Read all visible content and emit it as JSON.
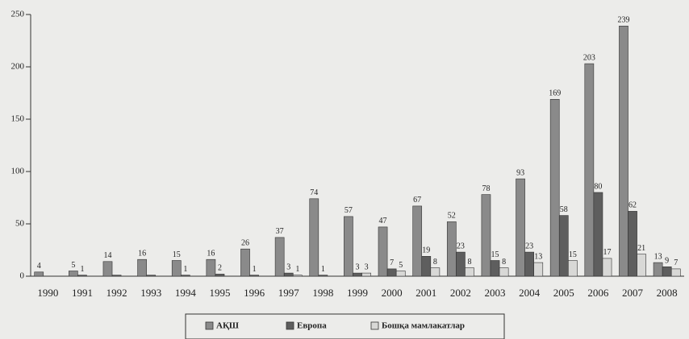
{
  "chart_data": {
    "type": "bar",
    "categories": [
      "1990",
      "1991",
      "1992",
      "1993",
      "1994",
      "1995",
      "1996",
      "1997",
      "1998",
      "1999",
      "2000",
      "2001",
      "2002",
      "2003",
      "2004",
      "2005",
      "2006",
      "2007",
      "2008"
    ],
    "series": [
      {
        "name": "АҚШ",
        "color": "#8a8a8a",
        "values": [
          4,
          5,
          14,
          16,
          15,
          16,
          26,
          37,
          74,
          57,
          47,
          67,
          52,
          78,
          93,
          169,
          203,
          239,
          13
        ],
        "value_labels": [
          "4",
          "5",
          "14",
          "16",
          "15",
          "16",
          "26",
          "37",
          "74",
          "57",
          "47",
          "67",
          "52",
          "78",
          "93",
          "169",
          "203",
          "239",
          "13"
        ]
      },
      {
        "name": "Европа",
        "color": "#5e5e5e",
        "values": [
          0,
          1,
          1,
          1,
          1,
          2,
          1,
          3,
          1,
          3,
          7,
          19,
          23,
          15,
          23,
          58,
          80,
          62,
          9
        ],
        "value_labels": [
          null,
          "1",
          null,
          null,
          "1",
          "2",
          "1",
          "3",
          "1",
          "3",
          "7",
          "19",
          "23",
          "15",
          "23",
          "58",
          "80",
          "62",
          "9"
        ]
      },
      {
        "name": "Бошқа мамлакатлар",
        "color": "#d8d8d6",
        "values": [
          0,
          0,
          0,
          0,
          0,
          0,
          0,
          1,
          0,
          3,
          5,
          8,
          8,
          8,
          13,
          15,
          17,
          21,
          7
        ],
        "value_labels": [
          null,
          null,
          null,
          null,
          null,
          null,
          null,
          "1",
          null,
          "3",
          "5",
          "8",
          "8",
          "8",
          "13",
          "15",
          "17",
          "21",
          "7"
        ]
      }
    ],
    "ylim": [
      0,
      250
    ],
    "yticks": [
      0,
      50,
      100,
      150,
      200,
      250
    ],
    "grid": false
  }
}
